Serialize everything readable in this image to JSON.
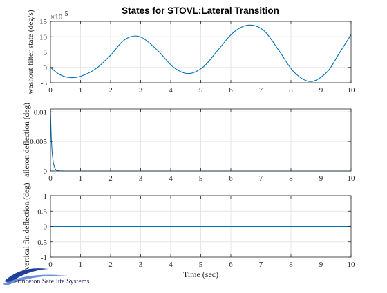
{
  "figure": {
    "title": "States for STOVL:Lateral Transition"
  },
  "chart_data": [
    {
      "type": "line",
      "ylabel": "washout filter state (deg/s)",
      "xlabel": "",
      "xlim": [
        0,
        10
      ],
      "ylim": [
        -5,
        15
      ],
      "xticks": [
        "0",
        "1",
        "2",
        "3",
        "4",
        "5",
        "6",
        "7",
        "8",
        "9",
        "10"
      ],
      "yticks": [
        "-5",
        "0",
        "5",
        "10",
        "15"
      ],
      "exponent_label": "×10",
      "exponent_value": "-5",
      "grid": true,
      "line_color": "#0072bd",
      "series": [
        {
          "x": [
            0,
            0.3,
            0.65,
            1.0,
            1.5,
            2.0,
            2.4,
            2.75,
            3.1,
            3.6,
            4.1,
            4.6,
            5.1,
            5.6,
            6.1,
            6.6,
            7.1,
            7.6,
            8.1,
            8.65,
            9.2,
            9.6,
            10.0
          ],
          "y": [
            0,
            -2.3,
            -3.3,
            -2.9,
            -0.5,
            4.0,
            8.5,
            10.2,
            9.4,
            5.2,
            0.0,
            -2.0,
            0.3,
            6.0,
            11.5,
            13.8,
            12.0,
            5.5,
            -1.5,
            -4.6,
            -1.5,
            4.5,
            10.7
          ]
        }
      ]
    },
    {
      "type": "line",
      "ylabel": "aileron deflection (deg)",
      "xlabel": "",
      "xlim": [
        0,
        10
      ],
      "ylim": [
        0,
        0.0105
      ],
      "xticks": [
        "0",
        "1",
        "2",
        "3",
        "4",
        "5",
        "6",
        "7",
        "8",
        "9",
        "10"
      ],
      "yticks": [
        "0",
        "0.005",
        "0.01"
      ],
      "grid": true,
      "line_color": "#0072bd",
      "series": [
        {
          "x": [
            0,
            0.01,
            0.03,
            0.06,
            0.1,
            0.15,
            0.2,
            0.3,
            0.5,
            1,
            10
          ],
          "y": [
            0.0105,
            0.0082,
            0.0052,
            0.0028,
            0.0012,
            0.0004,
            0.00012,
            2e-05,
            0,
            0,
            0
          ]
        }
      ]
    },
    {
      "type": "line",
      "ylabel": "vertical fin deflection (deg)",
      "xlabel": "Time (sec)",
      "xlim": [
        0,
        10
      ],
      "ylim": [
        -1,
        1
      ],
      "xticks": [
        "0",
        "1",
        "2",
        "3",
        "4",
        "5",
        "6",
        "7",
        "8",
        "9",
        "10"
      ],
      "yticks": [
        "-1",
        "-0.5",
        "0",
        "0.5",
        "1"
      ],
      "grid": true,
      "line_color": "#0072bd",
      "series": [
        {
          "x": [
            0,
            10
          ],
          "y": [
            0,
            0
          ]
        }
      ]
    }
  ],
  "logo": {
    "text": "Princeton Satellite Systems"
  }
}
